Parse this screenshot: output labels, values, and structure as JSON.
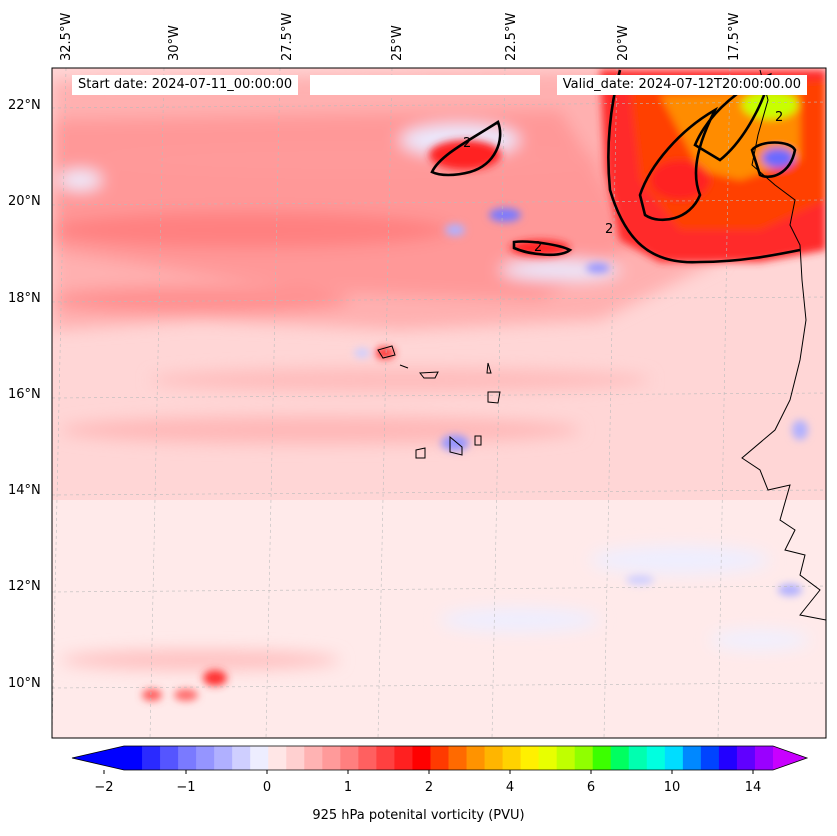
{
  "header": {
    "start_date": "Start date: 2024-07-11_00:00:00",
    "valid_date": "Valid_date: 2024-07-12T20:00:00.00"
  },
  "axes": {
    "longitude_labels": [
      "32.5°W",
      "30°W",
      "27.5°W",
      "25°W",
      "22.5°W",
      "20°W",
      "17.5°W"
    ],
    "latitude_labels": [
      "22°N",
      "20°N",
      "18°N",
      "16°N",
      "14°N",
      "12°N",
      "10°N"
    ]
  },
  "contour": {
    "level_label": "2"
  },
  "colorbar": {
    "label": "925 hPa potenital vorticity (PVU)",
    "tick_labels": [
      "−2",
      "−1",
      "0",
      "1",
      "2",
      "4",
      "6",
      "10",
      "14"
    ],
    "colors": [
      "#0000ff",
      "#2a2aff",
      "#5555ff",
      "#7a7aff",
      "#9595ff",
      "#b0b0ff",
      "#cfcfff",
      "#ededff",
      "#ffe6e6",
      "#ffd0d0",
      "#ffb3b3",
      "#ff9a9a",
      "#ff7f7f",
      "#ff6060",
      "#ff4040",
      "#ff2020",
      "#ff0000",
      "#ff3a00",
      "#ff6a00",
      "#ff9300",
      "#ffb500",
      "#ffd200",
      "#fff000",
      "#e8ff00",
      "#c0ff00",
      "#90ff00",
      "#3cff00",
      "#00ff60",
      "#00ffb0",
      "#00ffe0",
      "#00ddff",
      "#0088ff",
      "#0044ff",
      "#2200ff",
      "#6000ff",
      "#9a00ff"
    ],
    "under_color": "#0000ff",
    "over_color": "#c800ff"
  }
}
